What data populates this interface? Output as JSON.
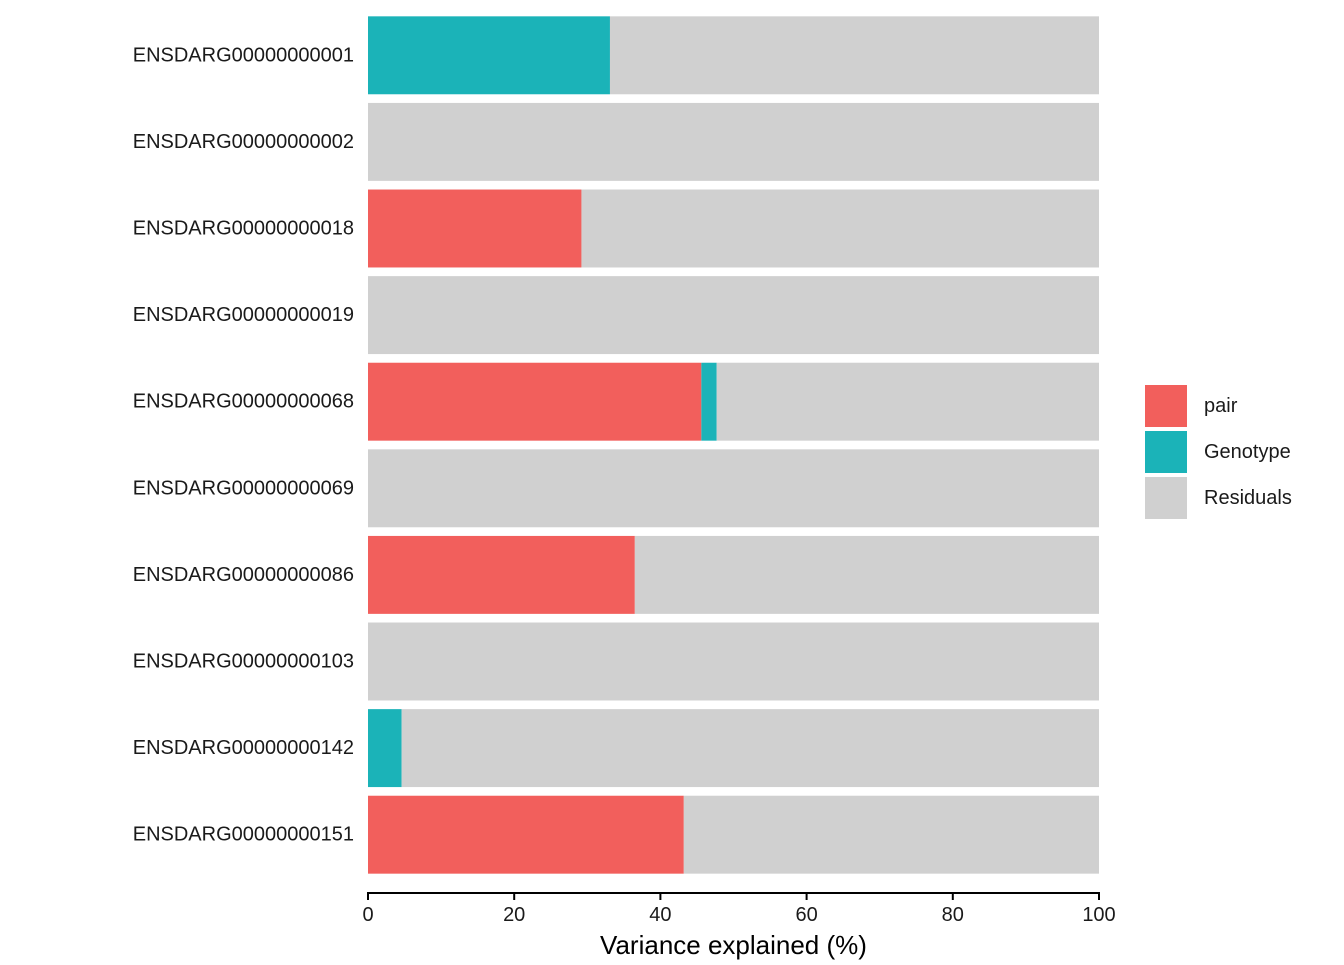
{
  "chart_data": {
    "type": "bar",
    "orientation": "horizontal",
    "stacked": true,
    "categories": [
      "ENSDARG00000000001",
      "ENSDARG00000000002",
      "ENSDARG00000000018",
      "ENSDARG00000000019",
      "ENSDARG00000000068",
      "ENSDARG00000000069",
      "ENSDARG00000000086",
      "ENSDARG00000000103",
      "ENSDARG00000000142",
      "ENSDARG00000000151"
    ],
    "series": [
      {
        "name": "pair",
        "color": "#F25F5C",
        "values": [
          0,
          0,
          29.2,
          0,
          45.6,
          0,
          36.5,
          0,
          0,
          43.2
        ]
      },
      {
        "name": "Genotype",
        "color": "#1BB3B8",
        "values": [
          33.1,
          0,
          0,
          0,
          2.1,
          0,
          0,
          0,
          4.6,
          0
        ]
      },
      {
        "name": "Residuals",
        "color": "#D0D0D0",
        "values": [
          66.9,
          100,
          70.8,
          100,
          52.3,
          100,
          63.5,
          100,
          95.4,
          56.8
        ]
      }
    ],
    "xlabel": "Variance explained (%)",
    "ylabel": "",
    "title": "",
    "xlim": [
      0,
      100
    ],
    "xticks": [
      0,
      20,
      40,
      60,
      80,
      100
    ],
    "grid": false,
    "legend_position": "right"
  }
}
